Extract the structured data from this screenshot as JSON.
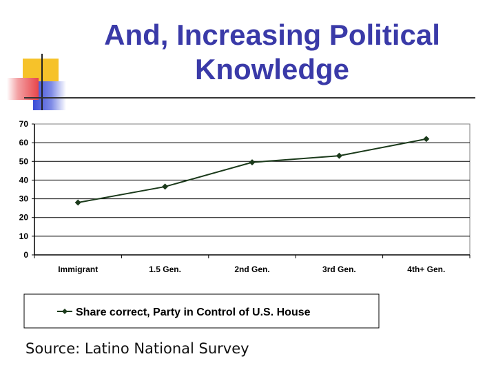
{
  "slide": {
    "title_line1": "And, Increasing Political",
    "title_line2": "Knowledge",
    "source": "Source: Latino National Survey"
  },
  "colors": {
    "title": "#3a3aa8",
    "series": "#1b3a1b",
    "deco_yellow": "#f6c22a",
    "deco_red": "#e8454a",
    "deco_blue": "#3b4cd6"
  },
  "chart_data": {
    "type": "line",
    "categories": [
      "Immigrant",
      "1.5 Gen.",
      "2nd Gen.",
      "3rd Gen.",
      "4th+ Gen."
    ],
    "series": [
      {
        "name": "Share correct, Party in Control of U.S. House",
        "values": [
          28,
          36.5,
          49.5,
          53,
          62
        ],
        "marker": "diamond"
      }
    ],
    "ylim": [
      0,
      70
    ],
    "yticks": [
      0,
      10,
      20,
      30,
      40,
      50,
      60,
      70
    ],
    "grid": true,
    "legend": "bottom"
  }
}
